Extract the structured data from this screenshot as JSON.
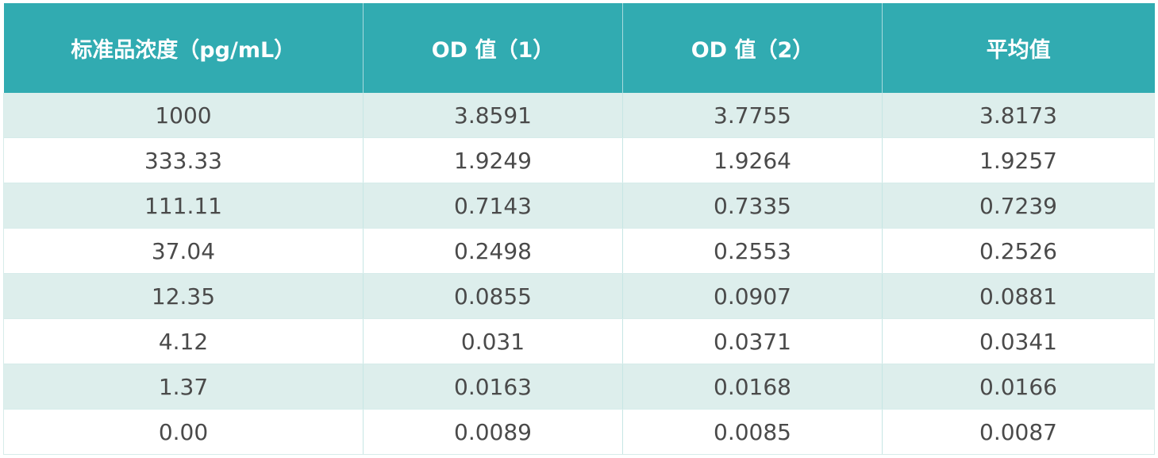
{
  "chart_data": {
    "type": "table",
    "columns": [
      "标准品浓度（pg/mL）",
      "OD 值（1）",
      "OD 值（2）",
      "平均值"
    ],
    "rows": [
      [
        "1000",
        "3.8591",
        "3.7755",
        "3.8173"
      ],
      [
        "333.33",
        "1.9249",
        "1.9264",
        "1.9257"
      ],
      [
        "111.11",
        "0.7143",
        "0.7335",
        "0.7239"
      ],
      [
        "37.04",
        "0.2498",
        "0.2553",
        "0.2526"
      ],
      [
        "12.35",
        "0.0855",
        "0.0907",
        "0.0881"
      ],
      [
        "4.12",
        "0.031",
        "0.0371",
        "0.0341"
      ],
      [
        "1.37",
        "0.0163",
        "0.0168",
        "0.0166"
      ],
      [
        "0.00",
        "0.0089",
        "0.0085",
        "0.0087"
      ]
    ]
  },
  "colors": {
    "header_bg": "#31abb1",
    "header_text": "#ffffff",
    "stripe_bg": "#ddeeec",
    "body_text": "#4a4a4a"
  }
}
